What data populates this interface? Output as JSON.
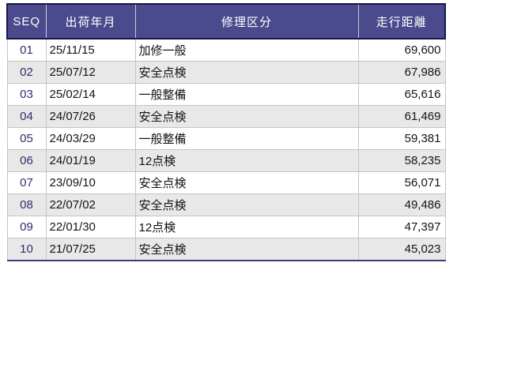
{
  "table": {
    "columns": [
      {
        "key": "seq",
        "label": "SEQ"
      },
      {
        "key": "ship_date",
        "label": "出荷年月"
      },
      {
        "key": "repair_type",
        "label": "修理区分"
      },
      {
        "key": "mileage",
        "label": "走行距離"
      }
    ],
    "rows": [
      {
        "seq": "01",
        "ship_date": "25/11/15",
        "repair_type": "加修一般",
        "mileage": "69,600"
      },
      {
        "seq": "02",
        "ship_date": "25/07/12",
        "repair_type": "安全点検",
        "mileage": "67,986"
      },
      {
        "seq": "03",
        "ship_date": "25/02/14",
        "repair_type": "一般整備",
        "mileage": "65,616"
      },
      {
        "seq": "04",
        "ship_date": "24/07/26",
        "repair_type": "安全点検",
        "mileage": "61,469"
      },
      {
        "seq": "05",
        "ship_date": "24/03/29",
        "repair_type": "一般整備",
        "mileage": "59,381"
      },
      {
        "seq": "06",
        "ship_date": "24/01/19",
        "repair_type": "12点検",
        "mileage": "58,235"
      },
      {
        "seq": "07",
        "ship_date": "23/09/10",
        "repair_type": "安全点検",
        "mileage": "56,071"
      },
      {
        "seq": "08",
        "ship_date": "22/07/02",
        "repair_type": "安全点検",
        "mileage": "49,486"
      },
      {
        "seq": "09",
        "ship_date": "22/01/30",
        "repair_type": "12点検",
        "mileage": "47,397"
      },
      {
        "seq": "10",
        "ship_date": "21/07/25",
        "repair_type": "安全点検",
        "mileage": "45,023"
      }
    ],
    "colors": {
      "header_bg": "#4A4A8C",
      "header_text": "#FFFFFF",
      "outer_border": "#17174A",
      "bottom_border": "#3D3D7A",
      "alt_row_bg": "#E8E8E8",
      "grid_line": "#C4C4C4",
      "seq_text": "#2E2E6E",
      "body_text": "#141414"
    }
  }
}
